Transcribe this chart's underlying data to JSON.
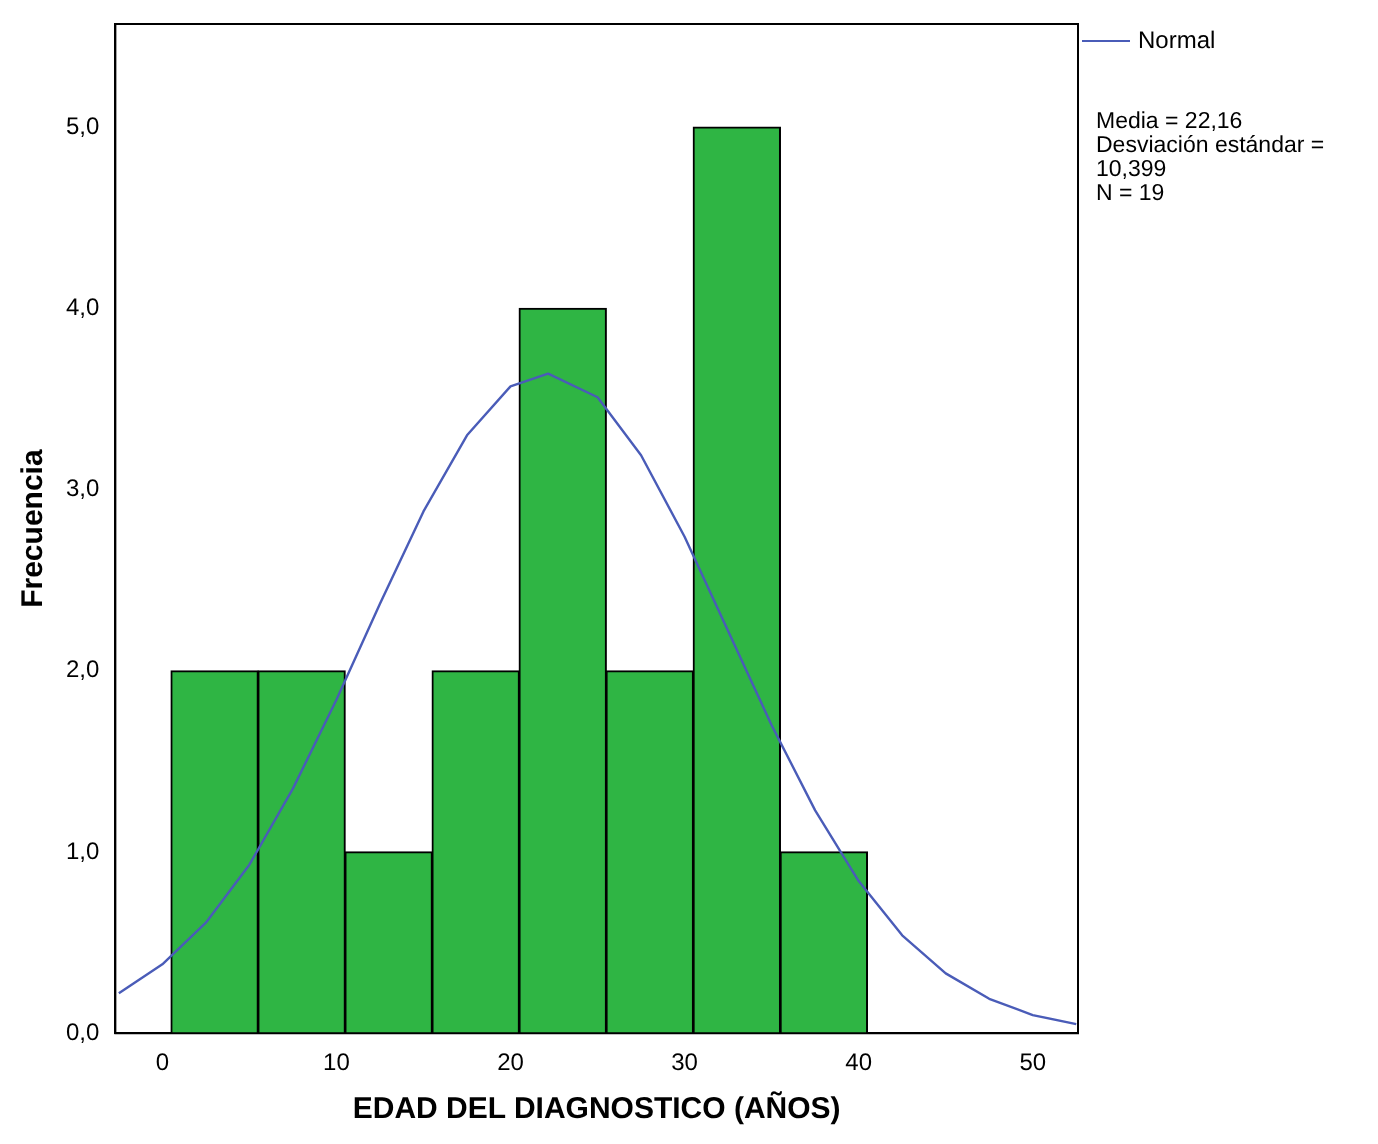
{
  "chart_data": {
    "type": "histogram",
    "xlabel": "EDAD DEL DIAGNOSTICO (AÑOS)",
    "ylabel": "Frecuencia",
    "xlim": [
      -2.7,
      52.6
    ],
    "xticks": [
      0,
      10,
      20,
      30,
      40,
      50
    ],
    "ylim": [
      0,
      5.57
    ],
    "yticks": [
      {
        "value": 0,
        "label": "0,0"
      },
      {
        "value": 1,
        "label": "1,0"
      },
      {
        "value": 2,
        "label": "2,0"
      },
      {
        "value": 3,
        "label": "3,0"
      },
      {
        "value": 4,
        "label": "4,0"
      },
      {
        "value": 5,
        "label": "5,0"
      }
    ],
    "grid": false,
    "legend": "top right",
    "series": [
      {
        "type": "histogram",
        "color": "#2fb544",
        "bins": [
          0.5,
          5.5,
          10.5,
          15.5,
          20.5,
          25.5,
          30.5,
          35.5,
          40.5
        ],
        "values": [
          2,
          2,
          1,
          2,
          4,
          2,
          5,
          1
        ]
      },
      {
        "type": "line",
        "name": "Normal",
        "color": "#4a5cb8",
        "x": [
          -2.5,
          0,
          2.5,
          5,
          7.5,
          10,
          12.5,
          15,
          17.5,
          20,
          22.16,
          25,
          27.5,
          30,
          32.5,
          35,
          37.5,
          40,
          42.5,
          45,
          47.5,
          50,
          52.5
        ],
        "values": [
          0.22,
          0.38,
          0.61,
          0.93,
          1.35,
          1.84,
          2.37,
          2.88,
          3.3,
          3.57,
          3.64,
          3.51,
          3.19,
          2.74,
          2.22,
          1.7,
          1.23,
          0.84,
          0.54,
          0.33,
          0.19,
          0.1,
          0.05
        ]
      }
    ],
    "annotations": [
      "Media = 22,16",
      "Desviación estándar = 10,399",
      "N = 19"
    ]
  }
}
